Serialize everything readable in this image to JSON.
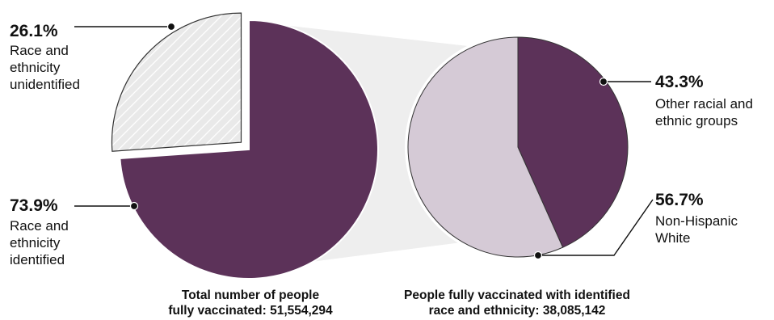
{
  "colors": {
    "dark_purple": "#5c3259",
    "light_purple": "#d5cad6",
    "hatch_fill": "#e9e9e9",
    "hatch_line": "#ffffff",
    "connector_band": "#eeeeee"
  },
  "chart_data": [
    {
      "type": "pie",
      "caption": "Total number of people\nfully vaccinated: 51,554,294",
      "slices": [
        {
          "label": "Race and\nethnicity\nunidentified",
          "percent_label": "26.1%",
          "value": 26.1,
          "color": "#e9e9e9",
          "pattern": "hatched",
          "exploded": true
        },
        {
          "label": "Race and\nethnicity\nidentified",
          "percent_label": "73.9%",
          "value": 73.9,
          "color": "#5c3259",
          "pattern": "solid",
          "exploded": false
        }
      ]
    },
    {
      "type": "pie",
      "caption": "People fully vaccinated with identified\nrace and ethnicity: 38,085,142",
      "slices": [
        {
          "label": "Other racial and\nethnic groups",
          "percent_label": "43.3%",
          "value": 43.3,
          "color": "#5c3259",
          "pattern": "solid"
        },
        {
          "label": "Non-Hispanic\nWhite",
          "percent_label": "56.7%",
          "value": 56.7,
          "color": "#d5cad6",
          "pattern": "solid"
        }
      ]
    }
  ]
}
